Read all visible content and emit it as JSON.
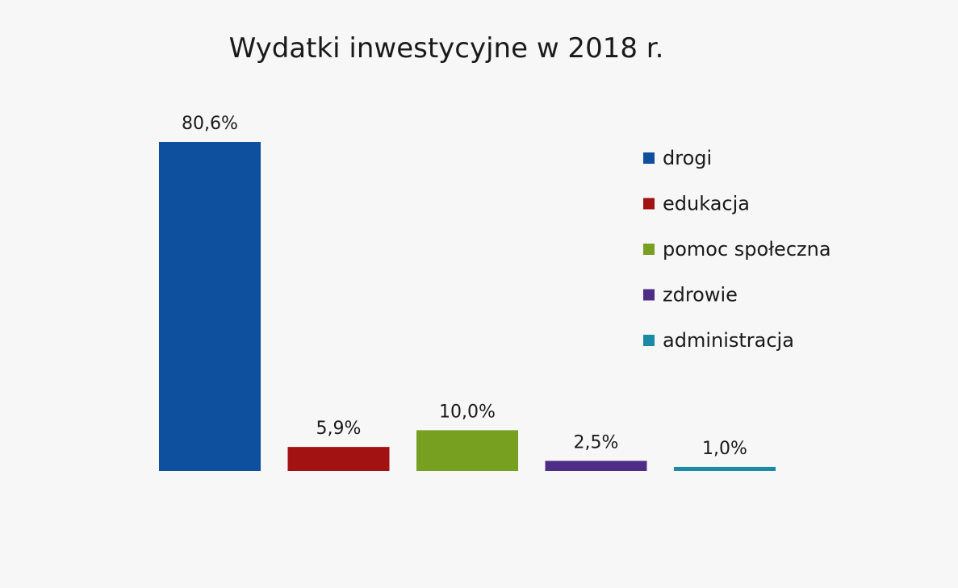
{
  "chart_data": {
    "type": "bar",
    "title": "Wydatki inwestycyjne w 2018 r.",
    "xlabel": "",
    "ylabel": "",
    "ylim": [
      0,
      80.6
    ],
    "grid": false,
    "legend_position": "right",
    "categories": [
      "drogi",
      "edukacja",
      "pomoc społeczna",
      "zdrowie",
      "administracja"
    ],
    "values": [
      80.6,
      5.9,
      10.0,
      2.5,
      1.0
    ],
    "value_labels": [
      "80,6%",
      "5,9%",
      "10,0%",
      "2,5%",
      "1,0%"
    ],
    "colors": [
      "#0e4f9e",
      "#a31213",
      "#77a020",
      "#4e2d86",
      "#1a8aa5"
    ]
  }
}
